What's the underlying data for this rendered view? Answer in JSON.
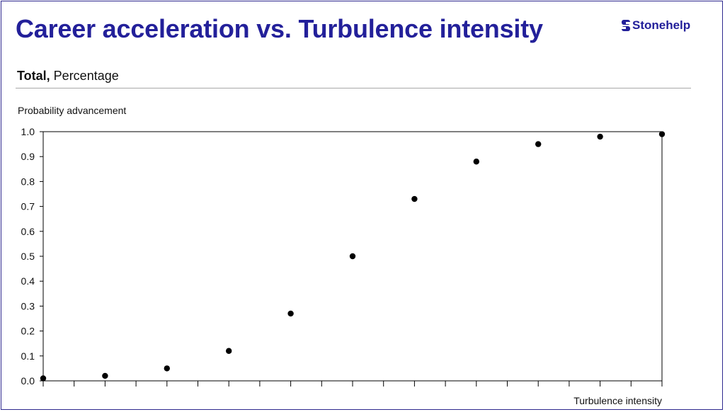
{
  "header": {
    "title": "Career acceleration vs. Turbulence intensity",
    "brand": "Stonehelp",
    "brand_color": "#23209a",
    "subtitle_bold": "Total,",
    "subtitle_rest": " Percentage"
  },
  "chart_data": {
    "type": "scatter",
    "ylabel": "Probability advancement",
    "xlabel": "Turbulence intensity",
    "ylim": [
      0,
      1.0
    ],
    "yticks": [
      "0.0",
      "0.1",
      "0.2",
      "0.3",
      "0.4",
      "0.5",
      "0.6",
      "0.7",
      "0.8",
      "0.9",
      "1.0"
    ],
    "xlim": [
      0,
      20
    ],
    "grid": false,
    "point_color": "#000000",
    "points": [
      {
        "x": 0,
        "y": 0.01
      },
      {
        "x": 2,
        "y": 0.02
      },
      {
        "x": 4,
        "y": 0.05
      },
      {
        "x": 6,
        "y": 0.12
      },
      {
        "x": 8,
        "y": 0.27
      },
      {
        "x": 10,
        "y": 0.5
      },
      {
        "x": 12,
        "y": 0.73
      },
      {
        "x": 14,
        "y": 0.88
      },
      {
        "x": 16,
        "y": 0.95
      },
      {
        "x": 18,
        "y": 0.98
      },
      {
        "x": 20,
        "y": 0.99
      }
    ]
  }
}
